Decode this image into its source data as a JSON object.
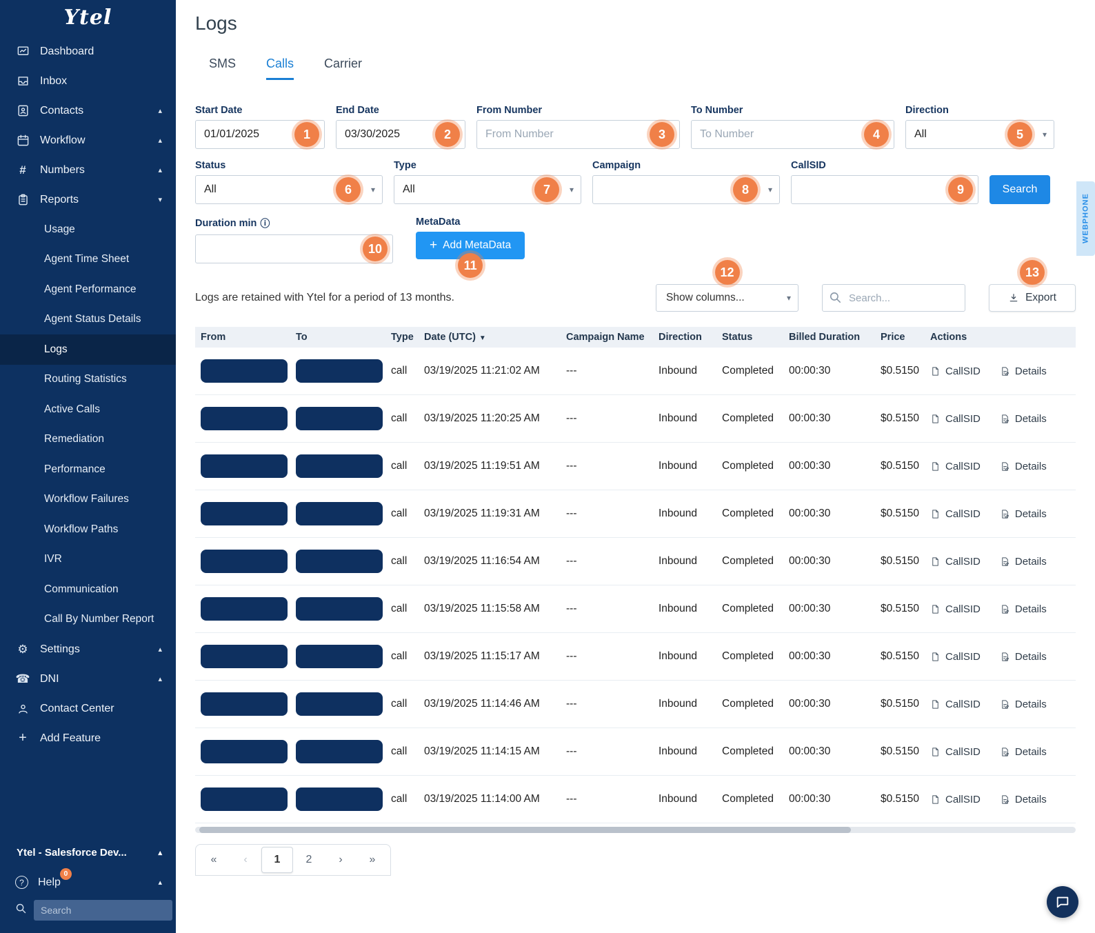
{
  "colors": {
    "accent_blue": "#1e88e5",
    "sidebar_navy": "#0d3161",
    "badge_orange": "#f08048",
    "redaction_navy": "#0e3060"
  },
  "sidebar": {
    "logo": "Ytel",
    "items": [
      {
        "label": "Dashboard"
      },
      {
        "label": "Inbox"
      },
      {
        "label": "Contacts"
      },
      {
        "label": "Workflow"
      },
      {
        "label": "Numbers"
      },
      {
        "label": "Reports"
      }
    ],
    "reports_subitems": [
      "Usage",
      "Agent Time Sheet",
      "Agent Performance",
      "Agent Status Details",
      "Logs",
      "Routing Statistics",
      "Active Calls",
      "Remediation",
      "Performance",
      "Workflow Failures",
      "Workflow Paths",
      "IVR",
      "Communication",
      "Call By Number Report"
    ],
    "selected_subitem": "Logs",
    "lower_items": [
      {
        "label": "Settings"
      },
      {
        "label": "DNI"
      },
      {
        "label": "Contact Center"
      },
      {
        "label": "Add Feature"
      }
    ],
    "bottom": {
      "org": "Ytel - Salesforce Dev...",
      "help": "Help",
      "help_badge": "0",
      "search_placeholder": "Search"
    }
  },
  "page": {
    "title": "Logs"
  },
  "tabs": [
    {
      "label": "SMS"
    },
    {
      "label": "Calls"
    },
    {
      "label": "Carrier"
    }
  ],
  "filters": {
    "start_date": {
      "label": "Start Date",
      "value": "01/01/2025",
      "badge": "1"
    },
    "end_date": {
      "label": "End Date",
      "value": "03/30/2025",
      "badge": "2"
    },
    "from_number": {
      "label": "From Number",
      "placeholder": "From Number",
      "badge": "3"
    },
    "to_number": {
      "label": "To Number",
      "placeholder": "To Number",
      "badge": "4"
    },
    "direction": {
      "label": "Direction",
      "value": "All",
      "badge": "5"
    },
    "status": {
      "label": "Status",
      "value": "All",
      "badge": "6"
    },
    "type": {
      "label": "Type",
      "value": "All",
      "badge": "7"
    },
    "campaign": {
      "label": "Campaign",
      "value": "",
      "badge": "8"
    },
    "callsid": {
      "label": "CallSID",
      "value": "",
      "badge": "9"
    },
    "search_button": "Search",
    "duration": {
      "label": "Duration min",
      "badge": "10"
    },
    "metadata": {
      "label": "MetaData",
      "button": "Add MetaData",
      "badge": "11"
    }
  },
  "toolbar": {
    "retention_note": "Logs are retained with Ytel for a period of 13 months.",
    "show_columns": "Show columns...",
    "show_columns_badge": "12",
    "search_placeholder": "Search...",
    "export_label": "Export",
    "export_badge": "13"
  },
  "table": {
    "columns": [
      "From",
      "To",
      "Type",
      "Date (UTC)",
      "Campaign Name",
      "Direction",
      "Status",
      "Billed Duration",
      "Price",
      "Actions"
    ],
    "actions": {
      "callsid": "CallSID",
      "details": "Details"
    },
    "rows": [
      {
        "type": "call",
        "date": "03/19/2025 11:21:02 AM",
        "campaign": "---",
        "direction": "Inbound",
        "status": "Completed",
        "billed": "00:00:30",
        "price": "$0.5150"
      },
      {
        "type": "call",
        "date": "03/19/2025 11:20:25 AM",
        "campaign": "---",
        "direction": "Inbound",
        "status": "Completed",
        "billed": "00:00:30",
        "price": "$0.5150"
      },
      {
        "type": "call",
        "date": "03/19/2025 11:19:51 AM",
        "campaign": "---",
        "direction": "Inbound",
        "status": "Completed",
        "billed": "00:00:30",
        "price": "$0.5150"
      },
      {
        "type": "call",
        "date": "03/19/2025 11:19:31 AM",
        "campaign": "---",
        "direction": "Inbound",
        "status": "Completed",
        "billed": "00:00:30",
        "price": "$0.5150"
      },
      {
        "type": "call",
        "date": "03/19/2025 11:16:54 AM",
        "campaign": "---",
        "direction": "Inbound",
        "status": "Completed",
        "billed": "00:00:30",
        "price": "$0.5150"
      },
      {
        "type": "call",
        "date": "03/19/2025 11:15:58 AM",
        "campaign": "---",
        "direction": "Inbound",
        "status": "Completed",
        "billed": "00:00:30",
        "price": "$0.5150"
      },
      {
        "type": "call",
        "date": "03/19/2025 11:15:17 AM",
        "campaign": "---",
        "direction": "Inbound",
        "status": "Completed",
        "billed": "00:00:30",
        "price": "$0.5150"
      },
      {
        "type": "call",
        "date": "03/19/2025 11:14:46 AM",
        "campaign": "---",
        "direction": "Inbound",
        "status": "Completed",
        "billed": "00:00:30",
        "price": "$0.5150"
      },
      {
        "type": "call",
        "date": "03/19/2025 11:14:15 AM",
        "campaign": "---",
        "direction": "Inbound",
        "status": "Completed",
        "billed": "00:00:30",
        "price": "$0.5150"
      },
      {
        "type": "call",
        "date": "03/19/2025 11:14:00 AM",
        "campaign": "---",
        "direction": "Inbound",
        "status": "Completed",
        "billed": "00:00:30",
        "price": "$0.5150"
      }
    ]
  },
  "pagination": {
    "first": "«",
    "prev": "‹",
    "pages": [
      "1",
      "2"
    ],
    "active_page": "1",
    "next": "›",
    "last": "»"
  },
  "webphone_label": "WEBPHONE"
}
